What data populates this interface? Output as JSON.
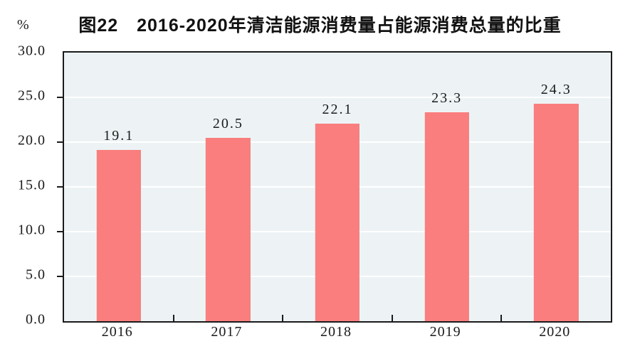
{
  "chart_data": {
    "type": "bar",
    "title": "图22　2016-2020年清洁能源消费量占能源消费总量的比重",
    "unit_label": "%",
    "categories": [
      "2016",
      "2017",
      "2018",
      "2019",
      "2020"
    ],
    "values": [
      19.1,
      20.5,
      22.1,
      23.3,
      24.3
    ],
    "value_labels": [
      "19.1",
      "20.5",
      "22.1",
      "23.3",
      "24.3"
    ],
    "xlabel": "",
    "ylabel": "%",
    "ylim": [
      0,
      30
    ],
    "ytick_step": 5,
    "ytick_labels": [
      "0.0",
      "5.0",
      "10.0",
      "15.0",
      "20.0",
      "25.0",
      "30.0"
    ],
    "grid": true,
    "legend": "none",
    "colors": {
      "bar_fill": "#FA7E7E",
      "bar_edge": "#EA8080",
      "plot_background": "#EDF3F5",
      "gridline": "#FFFFFF",
      "axis": "#1A1A1A",
      "text": "#1A1A1A"
    }
  }
}
